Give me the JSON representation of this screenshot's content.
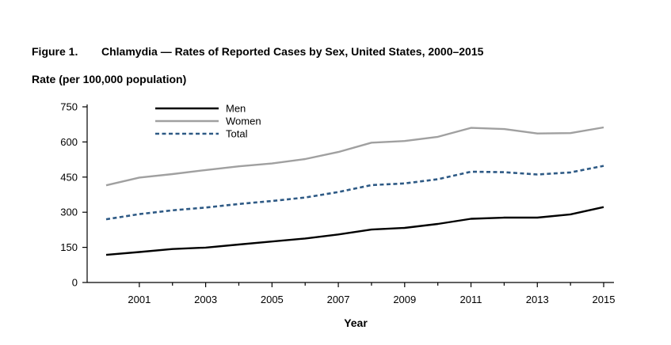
{
  "chart_data": {
    "type": "line",
    "figure_label": "Figure 1.",
    "title": "Chlamydia — Rates of Reported Cases by Sex, United States, 2000–2015",
    "ylabel": "Rate (per 100,000 population)",
    "xlabel": "Year",
    "x": [
      2000,
      2001,
      2002,
      2003,
      2004,
      2005,
      2006,
      2007,
      2008,
      2009,
      2010,
      2011,
      2012,
      2013,
      2014,
      2015
    ],
    "x_ticks": [
      "2001",
      "2003",
      "2005",
      "2007",
      "2009",
      "2011",
      "2013",
      "2015"
    ],
    "y_ticks": [
      "0",
      "150",
      "300",
      "450",
      "600",
      "750"
    ],
    "ylim": [
      0,
      750
    ],
    "grid": false,
    "legend_position": "top-left",
    "series": [
      {
        "name": "Men",
        "color": "#000000",
        "style": "solid",
        "values": [
          118,
          130,
          143,
          149,
          162,
          175,
          188,
          205,
          226,
          233,
          250,
          272,
          277,
          277,
          291,
          322
        ]
      },
      {
        "name": "Women",
        "color": "#a0a0a0",
        "style": "solid",
        "values": [
          415,
          448,
          463,
          480,
          496,
          508,
          527,
          557,
          597,
          604,
          622,
          660,
          655,
          636,
          638,
          662
        ]
      },
      {
        "name": "Total",
        "color": "#2e5a85",
        "style": "dashed",
        "values": [
          270,
          292,
          308,
          320,
          335,
          348,
          363,
          386,
          416,
          423,
          441,
          473,
          471,
          461,
          470,
          498
        ]
      }
    ]
  }
}
